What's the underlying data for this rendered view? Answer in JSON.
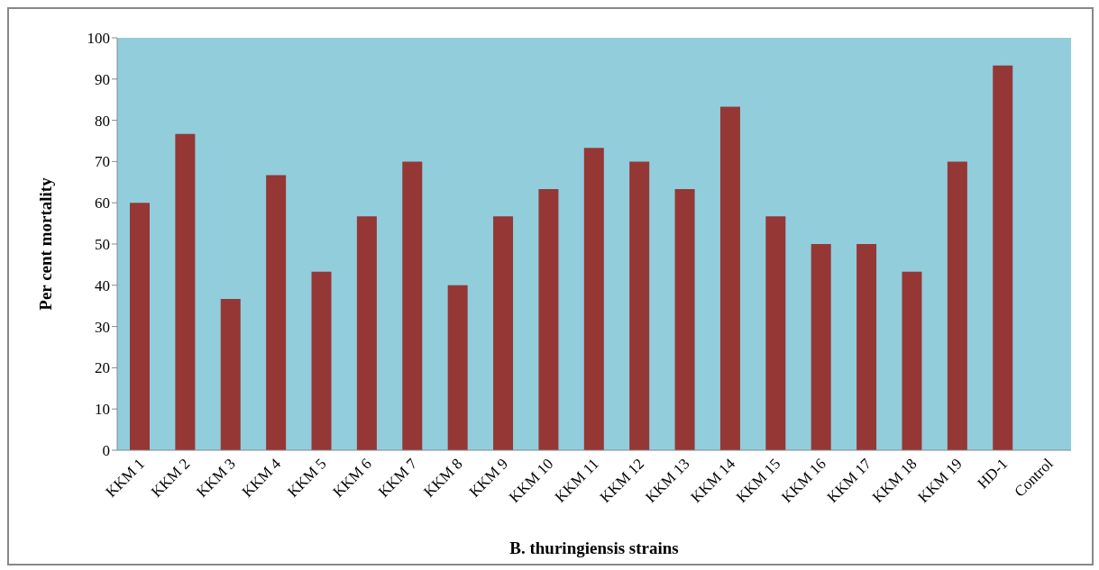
{
  "chart_data": {
    "type": "bar",
    "xlabel": "B. thuringiensis strains",
    "ylabel": "Per cent mortality",
    "categories": [
      "KKM 1",
      "KKM 2",
      "KKM 3",
      "KKM 4",
      "KKM 5",
      "KKM 6",
      "KKM 7",
      "KKM 8",
      "KKM 9",
      "KKM 10",
      "KKM 11",
      "KKM 12",
      "KKM 13",
      "KKM 14",
      "KKM 15",
      "KKM 16",
      "KKM 17",
      "KKM 18",
      "KKM 19",
      "HD-1",
      "Control"
    ],
    "values": [
      60,
      76.7,
      36.7,
      66.7,
      43.3,
      56.7,
      70,
      40,
      56.7,
      63.3,
      73.3,
      70,
      63.3,
      83.3,
      56.7,
      50,
      50,
      43.3,
      70,
      93.3,
      0
    ],
    "color": "#953735",
    "ylim": [
      0,
      100
    ],
    "yticks": [
      0,
      10,
      20,
      30,
      40,
      50,
      60,
      70,
      80,
      90,
      100
    ]
  }
}
